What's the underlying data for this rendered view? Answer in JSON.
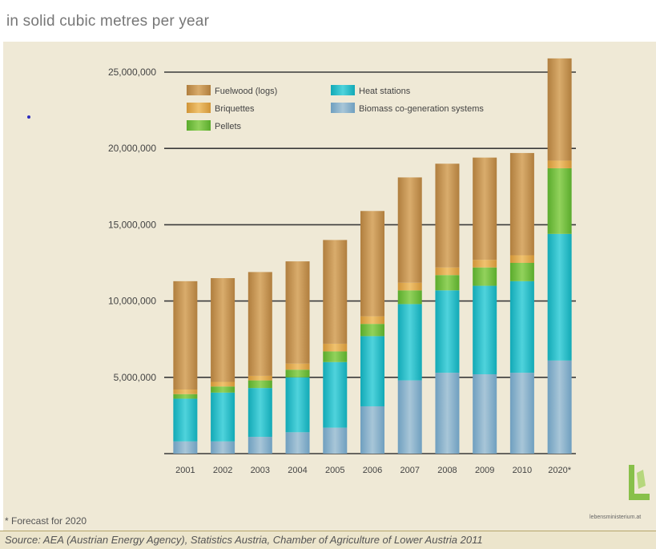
{
  "page": {
    "footnote": "* Forecast for 2020",
    "source": "Source: AEA (Austrian Energy Agency), Statistics Austria, Chamber of Agriculture of Lower Austria 2011",
    "website": "lebensministerium.at"
  },
  "chart_data": {
    "type": "bar",
    "stacked": true,
    "title": "in solid cubic metres per year",
    "categories": [
      "2001",
      "2002",
      "2003",
      "2004",
      "2005",
      "2006",
      "2007",
      "2008",
      "2009",
      "2010",
      "2020*"
    ],
    "ylim": [
      0,
      25000000
    ],
    "yticks": [
      5000000,
      10000000,
      15000000,
      20000000,
      25000000
    ],
    "ytick_labels": [
      "5,000,000",
      "10,000,000",
      "15,000,000",
      "20,000,000",
      "25,000,000"
    ],
    "grid": "horizontal",
    "legend_position": "top-left",
    "series": [
      {
        "name": "Biomass co-generation systems",
        "color": "#8fb3c9",
        "values": [
          800000,
          800000,
          1100000,
          1400000,
          1700000,
          3100000,
          4800000,
          5300000,
          5200000,
          5300000,
          6100000
        ]
      },
      {
        "name": "Heat stations",
        "color": "#2fbfc9",
        "values": [
          2800000,
          3200000,
          3200000,
          3600000,
          4300000,
          4600000,
          5000000,
          5400000,
          5800000,
          6000000,
          8300000
        ]
      },
      {
        "name": "Pellets",
        "color": "#7cc243",
        "values": [
          300000,
          400000,
          500000,
          500000,
          700000,
          800000,
          900000,
          1000000,
          1200000,
          1200000,
          4300000
        ]
      },
      {
        "name": "Briquettes",
        "color": "#e2a94e",
        "values": [
          300000,
          300000,
          300000,
          400000,
          500000,
          500000,
          500000,
          500000,
          500000,
          500000,
          500000
        ]
      },
      {
        "name": "Fuelwood (logs)",
        "color": "#c99550",
        "values": [
          7100000,
          6800000,
          6800000,
          6700000,
          6800000,
          6900000,
          6900000,
          6800000,
          6700000,
          6700000,
          6700000
        ]
      }
    ],
    "legend_order": [
      "Fuelwood (logs)",
      "Briquettes",
      "Pellets",
      "Heat stations",
      "Biomass co-generation systems"
    ]
  }
}
